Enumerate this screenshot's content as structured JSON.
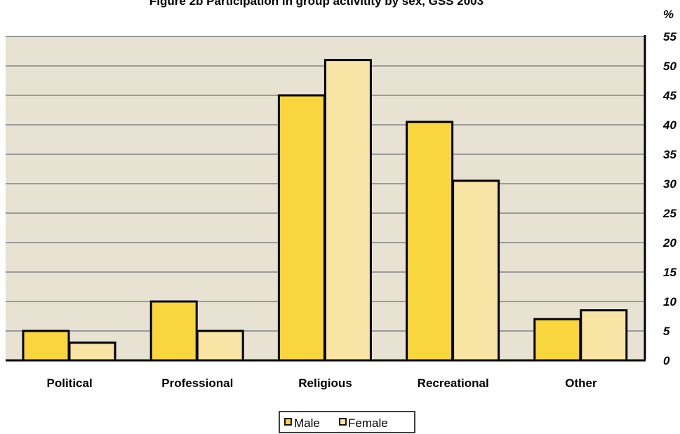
{
  "chart_data": {
    "type": "bar",
    "title": "Figure 2b  Participation  in group activitity  by sex, GSS 2003",
    "ylabel": "%",
    "categories": [
      "Political",
      "Professional",
      "Religious",
      "Recreational",
      "Other"
    ],
    "series": [
      {
        "name": "Male",
        "values": [
          5,
          10,
          45,
          40.5,
          7
        ],
        "color": "#f9d53e"
      },
      {
        "name": "Female",
        "values": [
          3,
          5,
          51,
          30.5,
          8.5
        ],
        "color": "#f8e4a5"
      }
    ],
    "ylim": [
      0,
      55
    ],
    "yticks": [
      "0",
      "5",
      "10",
      "15",
      "20",
      "25",
      "30",
      "35",
      "40",
      "45",
      "50",
      "55"
    ],
    "grid": true,
    "axis_side": "right",
    "legend_position": "bottom-center",
    "plot_background": "#e8e2d2"
  }
}
